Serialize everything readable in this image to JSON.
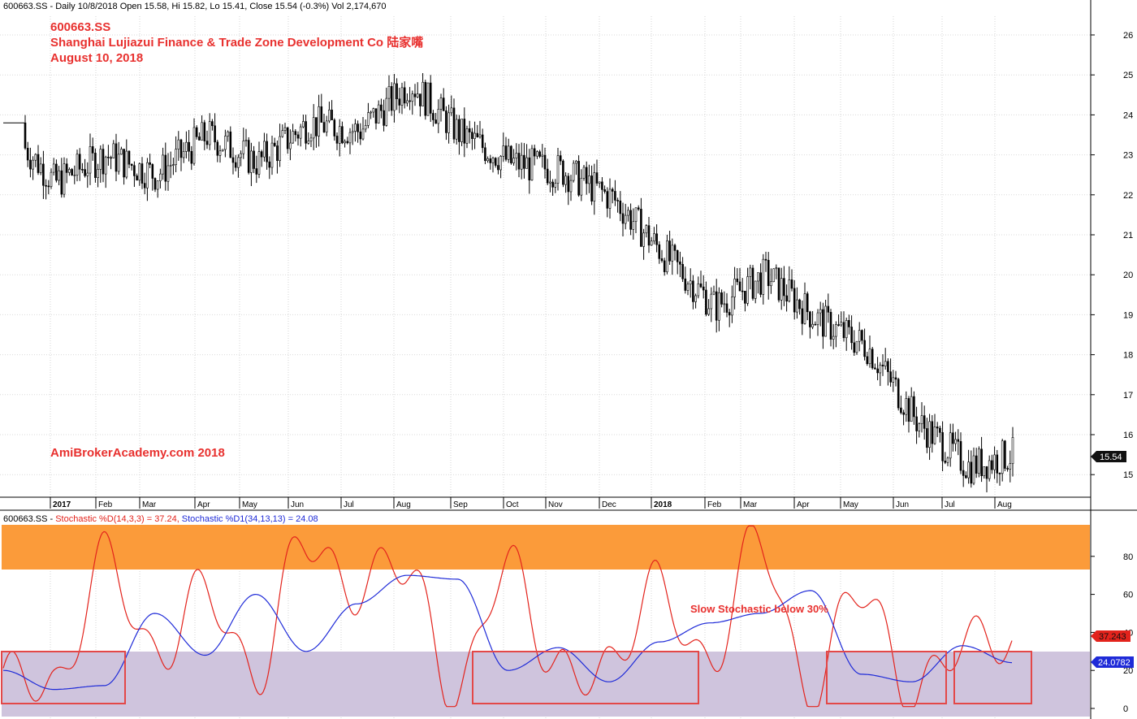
{
  "header": {
    "price_info": "600663.SS - Daily 10/8/2018 Open 15.58, Hi 15.82, Lo 15.41, Close 15.54 (-0.3%) Vol 2,174,670",
    "stoch_prefix": "600663.SS - ",
    "stoch_d_label": "Stochastic %D(14,3,3) = 37.24,",
    "stoch_d1_label": "Stochastic %D1(34,13,13) = 24.08"
  },
  "annotations": {
    "ticker": "600663.SS",
    "company": "Shanghai Lujiazui Finance & Trade Zone Development Co  陆家嘴",
    "date": "August 10, 2018",
    "watermark": "AmiBrokerAcademy.com  2018",
    "oversold_note": "Slow Stochastic below 30%"
  },
  "price_axis": {
    "ticks": [
      "26",
      "25",
      "24",
      "23",
      "22",
      "21",
      "20",
      "19",
      "18",
      "17",
      "16",
      "15"
    ],
    "last_price": "15.54"
  },
  "stoch_axis": {
    "ticks": [
      "80",
      "60",
      "40",
      "20",
      "0"
    ],
    "d_value": "37.243",
    "d1_value": "24.0782"
  },
  "x_axis": {
    "labels": [
      "2017",
      "Feb",
      "Mar",
      "Apr",
      "May",
      "Jun",
      "Jul",
      "Aug",
      "Sep",
      "Oct",
      "Nov",
      "Dec",
      "2018",
      "Feb",
      "Mar",
      "Apr",
      "May",
      "Jun",
      "Jul",
      "Aug"
    ]
  },
  "colors": {
    "overbought": "#fb9b3a",
    "oversold": "#cfc4dd",
    "stoch_d": "#e3231c",
    "stoch_d1": "#1f2bd8",
    "highlight_box": "#e34848",
    "annotation": "#e8312f"
  },
  "chart_data": [
    {
      "type": "candlestick",
      "title": "600663.SS",
      "ylim": [
        14.6,
        26.6
      ],
      "x": [
        "2016-12",
        "2017-01",
        "2017-02",
        "2017-03",
        "2017-04",
        "2017-05",
        "2017-06",
        "2017-07",
        "2017-08",
        "2017-09",
        "2017-10",
        "2017-11",
        "2017-12",
        "2018-01",
        "2018-02",
        "2018-03",
        "2018-04",
        "2018-05",
        "2018-06",
        "2018-07",
        "2018-08"
      ],
      "series": [
        {
          "values": [
            23.8,
            22.3,
            23.0,
            22.5,
            23.5,
            22.8,
            23.8,
            23.6,
            24.8,
            23.5,
            22.8,
            22.6,
            21.9,
            20.5,
            19.2,
            20.0,
            18.9,
            18.2,
            16.3,
            15.2,
            15.54
          ]
        }
      ],
      "last": 15.54
    },
    {
      "type": "line",
      "ylim": [
        0,
        100
      ],
      "x": [
        "2016-12",
        "2017-01",
        "2017-02",
        "2017-03",
        "2017-04",
        "2017-05",
        "2017-06",
        "2017-07",
        "2017-08",
        "2017-09",
        "2017-10",
        "2017-11",
        "2017-12",
        "2018-01",
        "2018-02",
        "2018-03",
        "2018-04",
        "2018-05",
        "2018-06",
        "2018-07",
        "2018-08"
      ],
      "series": [
        {
          "name": "Stochastic %D(14,3,3)",
          "values": [
            15,
            8,
            85,
            20,
            70,
            10,
            95,
            60,
            75,
            10,
            72,
            25,
            15,
            70,
            20,
            90,
            10,
            60,
            12,
            30,
            37.24
          ]
        },
        {
          "name": "Stochastic %D1(34,13,13)",
          "values": [
            20,
            10,
            12,
            50,
            28,
            60,
            30,
            55,
            70,
            68,
            20,
            32,
            14,
            35,
            45,
            50,
            62,
            18,
            14,
            33,
            24.08
          ]
        }
      ],
      "last": [
        37.24,
        24.08
      ],
      "bands": [
        {
          "from": 70,
          "to": 100,
          "color": "#fb9b3a"
        },
        {
          "from": 0,
          "to": 30,
          "color": "#cfc4dd"
        }
      ]
    }
  ]
}
